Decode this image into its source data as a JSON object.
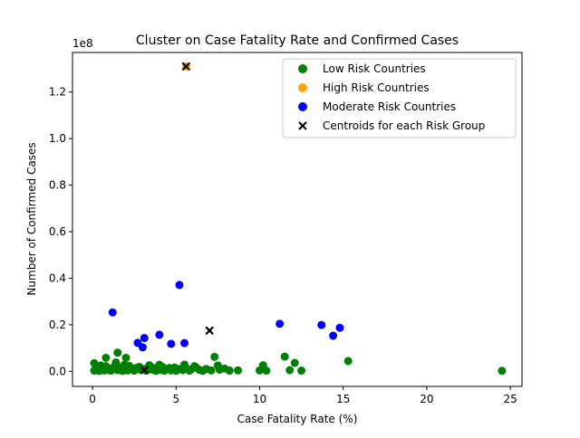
{
  "chart_data": {
    "type": "scatter",
    "title": "Cluster on Case Fatality Rate and Confirmed Cases",
    "xlabel": "Case Fatality Rate (%)",
    "ylabel": "Number of Confirmed Cases",
    "y_offset_label": "1e8",
    "xlim": [
      -1.2,
      25.7
    ],
    "ylim": [
      -6500000,
      137000000
    ],
    "x_ticks": [
      0,
      5,
      10,
      15,
      20,
      25
    ],
    "x_tick_labels": [
      "0",
      "5",
      "10",
      "15",
      "20",
      "25"
    ],
    "y_ticks": [
      0,
      20000000,
      40000000,
      60000000,
      80000000,
      100000000,
      120000000
    ],
    "y_tick_labels": [
      "0.0",
      "0.2",
      "0.4",
      "0.6",
      "0.8",
      "1.0",
      "1.2"
    ],
    "grid": false,
    "legend_position": "top-right",
    "series": [
      {
        "name": "Low Risk Countries",
        "color": "#008000",
        "marker": "circle",
        "points": [
          [
            0.1,
            300000
          ],
          [
            0.1,
            3500000
          ],
          [
            0.2,
            1800000
          ],
          [
            0.3,
            800000
          ],
          [
            0.4,
            200000
          ],
          [
            0.5,
            2500000
          ],
          [
            0.6,
            1000000
          ],
          [
            0.7,
            400000
          ],
          [
            0.8,
            5800000
          ],
          [
            0.8,
            2200000
          ],
          [
            0.9,
            700000
          ],
          [
            1.0,
            1200000
          ],
          [
            1.1,
            300000
          ],
          [
            1.2,
            900000
          ],
          [
            1.3,
            2000000
          ],
          [
            1.4,
            3800000
          ],
          [
            1.5,
            8000000
          ],
          [
            1.5,
            500000
          ],
          [
            1.6,
            1500000
          ],
          [
            1.8,
            200000
          ],
          [
            1.9,
            2800000
          ],
          [
            2.0,
            5800000
          ],
          [
            2.0,
            1000000
          ],
          [
            2.1,
            400000
          ],
          [
            2.2,
            2300000
          ],
          [
            2.4,
            700000
          ],
          [
            2.5,
            300000
          ],
          [
            2.6,
            1400000
          ],
          [
            2.8,
            1900000
          ],
          [
            2.9,
            600000
          ],
          [
            3.1,
            1000000
          ],
          [
            3.2,
            300000
          ],
          [
            3.4,
            2600000
          ],
          [
            3.5,
            800000
          ],
          [
            3.6,
            1500000
          ],
          [
            3.7,
            500000
          ],
          [
            3.8,
            200000
          ],
          [
            3.9,
            1100000
          ],
          [
            4.0,
            2800000
          ],
          [
            4.1,
            600000
          ],
          [
            4.2,
            1800000
          ],
          [
            4.3,
            300000
          ],
          [
            4.4,
            900000
          ],
          [
            4.6,
            1400000
          ],
          [
            4.7,
            400000
          ],
          [
            4.8,
            700000
          ],
          [
            4.9,
            1600000
          ],
          [
            5.0,
            200000
          ],
          [
            5.2,
            1000000
          ],
          [
            5.4,
            500000
          ],
          [
            5.5,
            2900000
          ],
          [
            5.6,
            1300000
          ],
          [
            5.8,
            300000
          ],
          [
            5.9,
            800000
          ],
          [
            6.1,
            2200000
          ],
          [
            6.2,
            1600000
          ],
          [
            6.4,
            600000
          ],
          [
            6.6,
            200000
          ],
          [
            6.8,
            1000000
          ],
          [
            7.1,
            400000
          ],
          [
            7.3,
            6200000
          ],
          [
            7.5,
            2500000
          ],
          [
            7.6,
            700000
          ],
          [
            7.9,
            1200000
          ],
          [
            8.2,
            300000
          ],
          [
            8.7,
            400000
          ],
          [
            10.0,
            400000
          ],
          [
            10.2,
            2600000
          ],
          [
            10.4,
            300000
          ],
          [
            11.5,
            6300000
          ],
          [
            11.8,
            500000
          ],
          [
            12.1,
            3600000
          ],
          [
            12.5,
            300000
          ],
          [
            15.3,
            4400000
          ],
          [
            24.5,
            200000
          ]
        ]
      },
      {
        "name": "High Risk Countries",
        "color": "#ffa500",
        "marker": "circle",
        "points": [
          [
            5.6,
            131000000
          ]
        ]
      },
      {
        "name": "Moderate Risk Countries",
        "color": "#0000ff",
        "marker": "circle",
        "points": [
          [
            1.2,
            25300000
          ],
          [
            2.7,
            12200000
          ],
          [
            3.0,
            10300000
          ],
          [
            3.1,
            14300000
          ],
          [
            4.0,
            15700000
          ],
          [
            4.7,
            11800000
          ],
          [
            5.2,
            37100000
          ],
          [
            5.5,
            12100000
          ],
          [
            11.2,
            20400000
          ],
          [
            13.7,
            19900000
          ],
          [
            14.4,
            15300000
          ],
          [
            14.8,
            18700000
          ]
        ]
      },
      {
        "name": "Centroids for each Risk Group",
        "color": "#000000",
        "marker": "x",
        "points": [
          [
            3.1,
            500000
          ],
          [
            5.6,
            131000000
          ],
          [
            7.0,
            17500000
          ]
        ]
      }
    ]
  }
}
